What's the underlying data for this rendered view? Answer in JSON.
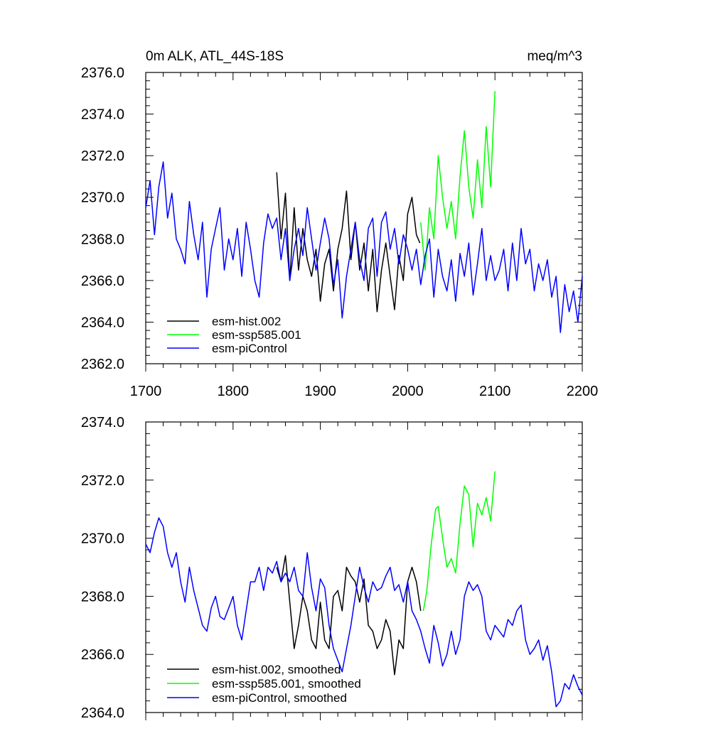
{
  "chart_data": [
    {
      "type": "line",
      "title": "0m ALK, ATL_44S-18S",
      "units": "meq/m^3",
      "xlabel": "",
      "ylabel": "",
      "xlim": [
        1700,
        2200
      ],
      "ylim": [
        2362,
        2376
      ],
      "xticks": [
        1700,
        1800,
        1900,
        2000,
        2100,
        2200
      ],
      "xtick_labels": [
        "1700",
        "1800",
        "1900",
        "2000",
        "2100",
        "2200"
      ],
      "yticks": [
        2362,
        2364,
        2366,
        2368,
        2370,
        2372,
        2374,
        2376
      ],
      "ytick_labels": [
        "2362.0",
        "2364.0",
        "2366.0",
        "2368.0",
        "2370.0",
        "2372.0",
        "2374.0",
        "2376.0"
      ],
      "grid": false,
      "legend_position": "bottom-left",
      "series": [
        {
          "name": "esm-hist.002",
          "color": "#000000",
          "x": [
            1850,
            1855,
            1860,
            1865,
            1870,
            1875,
            1880,
            1885,
            1890,
            1895,
            1900,
            1905,
            1910,
            1915,
            1920,
            1925,
            1930,
            1935,
            1940,
            1945,
            1950,
            1955,
            1960,
            1965,
            1970,
            1975,
            1980,
            1985,
            1990,
            1995,
            2000,
            2005,
            2010,
            2014
          ],
          "y": [
            2371.2,
            2368.0,
            2370.2,
            2366.0,
            2369.5,
            2366.5,
            2368.5,
            2367.0,
            2366.2,
            2367.5,
            2365.0,
            2366.8,
            2367.5,
            2365.5,
            2367.5,
            2368.5,
            2370.3,
            2367.0,
            2368.8,
            2366.5,
            2367.8,
            2365.5,
            2367.5,
            2364.5,
            2366.5,
            2367.8,
            2366.2,
            2364.6,
            2367.2,
            2366.0,
            2369.2,
            2370.0,
            2368.2,
            2367.8
          ]
        },
        {
          "name": "esm-ssp585.001",
          "color": "#00ff00",
          "x": [
            2015,
            2020,
            2025,
            2030,
            2035,
            2040,
            2045,
            2050,
            2055,
            2060,
            2065,
            2070,
            2075,
            2080,
            2085,
            2090,
            2095,
            2100
          ],
          "y": [
            2368.8,
            2366.5,
            2369.5,
            2368.0,
            2372.0,
            2370.0,
            2368.5,
            2369.8,
            2368.0,
            2371.0,
            2373.2,
            2370.5,
            2369.0,
            2371.8,
            2369.5,
            2373.4,
            2370.5,
            2375.1
          ]
        },
        {
          "name": "esm-piControl",
          "color": "#0000ff",
          "x": [
            1700,
            1705,
            1710,
            1715,
            1720,
            1725,
            1730,
            1735,
            1740,
            1745,
            1750,
            1755,
            1760,
            1765,
            1770,
            1775,
            1780,
            1785,
            1790,
            1795,
            1800,
            1805,
            1810,
            1815,
            1820,
            1825,
            1830,
            1835,
            1840,
            1845,
            1850,
            1855,
            1860,
            1865,
            1870,
            1875,
            1880,
            1885,
            1890,
            1895,
            1900,
            1905,
            1910,
            1915,
            1920,
            1925,
            1930,
            1935,
            1940,
            1945,
            1950,
            1955,
            1960,
            1965,
            1970,
            1975,
            1980,
            1985,
            1990,
            1995,
            2000,
            2005,
            2010,
            2015,
            2020,
            2025,
            2030,
            2035,
            2040,
            2045,
            2050,
            2055,
            2060,
            2065,
            2070,
            2075,
            2080,
            2085,
            2090,
            2095,
            2100,
            2105,
            2110,
            2115,
            2120,
            2125,
            2130,
            2135,
            2140,
            2145,
            2150,
            2155,
            2160,
            2165,
            2170,
            2175,
            2180,
            2185,
            2190,
            2195,
            2200
          ],
          "y": [
            2369.5,
            2370.8,
            2368.2,
            2370.5,
            2371.7,
            2369.0,
            2370.2,
            2368.0,
            2367.5,
            2366.8,
            2369.8,
            2368.2,
            2367.0,
            2368.8,
            2365.2,
            2367.5,
            2368.5,
            2369.5,
            2366.5,
            2368.0,
            2367.0,
            2368.5,
            2366.2,
            2368.8,
            2367.5,
            2366.0,
            2365.2,
            2367.8,
            2369.2,
            2368.5,
            2369.0,
            2367.0,
            2368.5,
            2366.0,
            2367.5,
            2368.5,
            2367.2,
            2369.5,
            2368.0,
            2366.5,
            2367.8,
            2369.0,
            2368.0,
            2365.8,
            2367.0,
            2364.2,
            2366.2,
            2367.5,
            2368.8,
            2367.0,
            2366.0,
            2368.5,
            2369.0,
            2366.2,
            2368.8,
            2369.3,
            2367.5,
            2368.5,
            2366.8,
            2368.2,
            2367.5,
            2366.5,
            2367.5,
            2365.8,
            2367.2,
            2368.0,
            2365.2,
            2367.5,
            2366.2,
            2365.5,
            2367.0,
            2365.0,
            2367.3,
            2366.2,
            2367.8,
            2365.3,
            2366.8,
            2368.5,
            2366.0,
            2367.2,
            2366.0,
            2366.5,
            2367.5,
            2365.5,
            2367.8,
            2366.0,
            2368.5,
            2366.8,
            2367.5,
            2365.5,
            2366.8,
            2366.0,
            2367.0,
            2365.2,
            2366.2,
            2363.5,
            2365.8,
            2364.5,
            2365.5,
            2364.0,
            2366.2
          ]
        }
      ]
    },
    {
      "type": "line",
      "title": "",
      "units": "",
      "xlabel": "",
      "ylabel": "",
      "xlim": [
        1700,
        2200
      ],
      "ylim": [
        2364,
        2374
      ],
      "xticks": [
        1700,
        1800,
        1900,
        2000,
        2100,
        2200
      ],
      "xtick_labels": [],
      "yticks": [
        2364,
        2366,
        2368,
        2370,
        2372,
        2374
      ],
      "ytick_labels": [
        "2364.0",
        "2366.0",
        "2368.0",
        "2370.0",
        "2372.0",
        "2374.0"
      ],
      "grid": false,
      "legend_position": "bottom-left",
      "series": [
        {
          "name": "esm-hist.002, smoothed",
          "color": "#000000",
          "x": [
            1850,
            1855,
            1860,
            1865,
            1870,
            1875,
            1880,
            1885,
            1890,
            1895,
            1900,
            1905,
            1910,
            1915,
            1920,
            1925,
            1930,
            1935,
            1940,
            1945,
            1950,
            1955,
            1960,
            1965,
            1970,
            1975,
            1980,
            1985,
            1990,
            1995,
            2000,
            2005,
            2010,
            2015
          ],
          "y": [
            2369.0,
            2368.5,
            2369.4,
            2367.8,
            2366.2,
            2367.0,
            2368.0,
            2367.5,
            2366.5,
            2366.2,
            2367.8,
            2366.5,
            2366.2,
            2368.0,
            2368.2,
            2367.5,
            2369.0,
            2368.7,
            2368.5,
            2367.8,
            2368.6,
            2367.0,
            2366.8,
            2366.2,
            2366.5,
            2367.2,
            2366.8,
            2365.3,
            2366.5,
            2366.2,
            2368.5,
            2369.0,
            2368.5,
            2367.5
          ]
        },
        {
          "name": "esm-ssp585.001, smoothed",
          "color": "#00ff00",
          "x": [
            2018,
            2022,
            2027,
            2032,
            2035,
            2040,
            2045,
            2050,
            2055,
            2060,
            2065,
            2070,
            2075,
            2080,
            2085,
            2090,
            2095,
            2100
          ],
          "y": [
            2367.5,
            2368.2,
            2369.8,
            2371.0,
            2371.1,
            2370.0,
            2369.0,
            2369.3,
            2368.8,
            2370.5,
            2371.8,
            2371.5,
            2369.7,
            2371.2,
            2370.8,
            2371.4,
            2370.6,
            2372.3
          ]
        },
        {
          "name": "esm-piControl, smoothed",
          "color": "#0000ff",
          "x": [
            1700,
            1705,
            1710,
            1715,
            1720,
            1725,
            1730,
            1735,
            1740,
            1745,
            1750,
            1755,
            1760,
            1765,
            1770,
            1775,
            1780,
            1785,
            1790,
            1795,
            1800,
            1805,
            1810,
            1815,
            1820,
            1825,
            1830,
            1835,
            1840,
            1845,
            1850,
            1855,
            1860,
            1865,
            1870,
            1875,
            1880,
            1885,
            1890,
            1895,
            1900,
            1905,
            1910,
            1915,
            1920,
            1925,
            1930,
            1935,
            1940,
            1945,
            1950,
            1955,
            1960,
            1965,
            1970,
            1975,
            1980,
            1985,
            1990,
            1995,
            2000,
            2005,
            2010,
            2015,
            2020,
            2025,
            2030,
            2035,
            2040,
            2045,
            2050,
            2055,
            2060,
            2065,
            2070,
            2075,
            2080,
            2085,
            2090,
            2095,
            2100,
            2105,
            2110,
            2115,
            2120,
            2125,
            2130,
            2135,
            2140,
            2145,
            2150,
            2155,
            2160,
            2165,
            2170,
            2175,
            2180,
            2185,
            2190,
            2195,
            2200
          ],
          "y": [
            2369.8,
            2369.5,
            2370.2,
            2370.7,
            2370.4,
            2369.5,
            2369.0,
            2369.5,
            2368.5,
            2367.8,
            2369.0,
            2368.2,
            2367.6,
            2367.0,
            2366.8,
            2367.6,
            2368.0,
            2367.3,
            2367.2,
            2367.6,
            2368.0,
            2367.0,
            2366.5,
            2367.5,
            2368.5,
            2368.5,
            2369.0,
            2368.2,
            2369.0,
            2368.8,
            2369.2,
            2368.5,
            2368.8,
            2368.5,
            2369.0,
            2368.2,
            2368.0,
            2369.5,
            2368.3,
            2367.5,
            2368.6,
            2368.3,
            2367.0,
            2366.2,
            2365.8,
            2365.4,
            2366.2,
            2367.0,
            2368.0,
            2369.0,
            2368.3,
            2367.8,
            2368.5,
            2368.2,
            2368.3,
            2368.7,
            2369.0,
            2368.2,
            2368.4,
            2367.8,
            2368.5,
            2367.5,
            2367.2,
            2366.8,
            2366.2,
            2365.7,
            2367.0,
            2366.4,
            2365.6,
            2366.0,
            2366.8,
            2366.0,
            2366.5,
            2368.0,
            2368.5,
            2368.2,
            2368.4,
            2368.0,
            2366.8,
            2366.5,
            2367.0,
            2366.8,
            2366.6,
            2367.2,
            2367.0,
            2367.5,
            2367.7,
            2366.5,
            2366.0,
            2366.2,
            2366.5,
            2365.8,
            2366.3,
            2365.4,
            2364.2,
            2364.4,
            2365.0,
            2364.8,
            2365.3,
            2364.9,
            2364.6
          ]
        }
      ]
    }
  ]
}
